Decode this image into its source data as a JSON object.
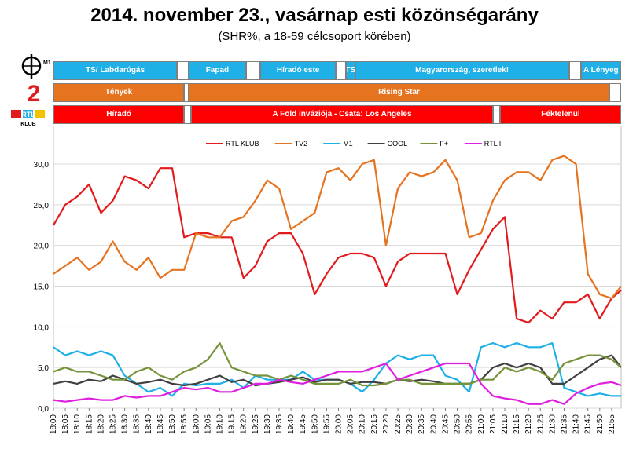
{
  "title": "2014. november 23., vasárnap esti közönségarány",
  "subtitle": "(SHR%, a 18-59 célcsoport körében)",
  "channels": {
    "m1_logo_text": "M1",
    "tv2_logo_text": "2",
    "rtl_logo_text": "RTL",
    "rtl_logo_sub": "KLUB"
  },
  "schedule": {
    "m1": [
      {
        "label": "TS/ Labdarúgás",
        "start": "18:00",
        "end": "18:52"
      },
      {
        "label": "",
        "start": "18:52",
        "end": "18:57"
      },
      {
        "label": "Fapad",
        "start": "18:57",
        "end": "19:21"
      },
      {
        "label": "",
        "start": "19:21",
        "end": "19:27"
      },
      {
        "label": "Híradó este",
        "start": "19:27",
        "end": "19:59"
      },
      {
        "label": "",
        "start": "19:59",
        "end": "20:03"
      },
      {
        "label": "TS",
        "start": "20:03",
        "end": "20:07"
      },
      {
        "label": "Magyarország, szeretlek!",
        "start": "20:07",
        "end": "21:37"
      },
      {
        "label": "",
        "start": "21:37",
        "end": "21:42"
      },
      {
        "label": "A Lényeg",
        "start": "21:42",
        "end": "21:59"
      }
    ],
    "tv2": [
      {
        "label": "Tények",
        "start": "18:00",
        "end": "18:55"
      },
      {
        "label": "",
        "start": "18:55",
        "end": "18:57"
      },
      {
        "label": "Rising Star",
        "start": "18:57",
        "end": "21:54"
      },
      {
        "label": "",
        "start": "21:54",
        "end": "21:59"
      }
    ],
    "rtl": [
      {
        "label": "Híradó",
        "start": "18:00",
        "end": "18:55"
      },
      {
        "label": "",
        "start": "18:55",
        "end": "18:58"
      },
      {
        "label": "A Föld inváziója - Csata: Los Angeles",
        "start": "18:58",
        "end": "21:05"
      },
      {
        "label": "",
        "start": "21:05",
        "end": "21:08"
      },
      {
        "label": "Féktelenül",
        "start": "21:08",
        "end": "21:59"
      }
    ]
  },
  "chart_data": {
    "type": "line",
    "xlabel": "",
    "ylabel": "",
    "ylim": [
      0,
      35
    ],
    "xlim": [
      "18:00",
      "21:59"
    ],
    "yticks": [
      "0,0",
      "5,0",
      "10,0",
      "15,0",
      "20,0",
      "25,0",
      "30,0"
    ],
    "ytick_values": [
      0,
      5,
      10,
      15,
      20,
      25,
      30
    ],
    "xticks": [
      "18:00",
      "18:05",
      "18:10",
      "18:15",
      "18:20",
      "18:25",
      "18:30",
      "18:35",
      "18:40",
      "18:45",
      "18:50",
      "18:55",
      "19:00",
      "19:05",
      "19:10",
      "19:15",
      "19:20",
      "19:25",
      "19:30",
      "19:35",
      "19:40",
      "19:45",
      "19:50",
      "19:55",
      "20:00",
      "20:05",
      "20:10",
      "20:15",
      "20:20",
      "20:25",
      "20:30",
      "20:35",
      "20:40",
      "20:45",
      "20:50",
      "20:55",
      "21:00",
      "21:05",
      "21:10",
      "21:15",
      "21:20",
      "21:25",
      "21:30",
      "21:35",
      "21:40",
      "21:45",
      "21:50",
      "21:55"
    ],
    "grid": "horizontal",
    "legend_position": "top",
    "x": [
      "18:00",
      "18:05",
      "18:10",
      "18:15",
      "18:20",
      "18:25",
      "18:30",
      "18:35",
      "18:40",
      "18:45",
      "18:50",
      "18:55",
      "19:00",
      "19:05",
      "19:10",
      "19:15",
      "19:20",
      "19:25",
      "19:30",
      "19:35",
      "19:40",
      "19:45",
      "19:50",
      "19:55",
      "20:00",
      "20:05",
      "20:10",
      "20:15",
      "20:20",
      "20:25",
      "20:30",
      "20:35",
      "20:40",
      "20:45",
      "20:50",
      "20:55",
      "21:00",
      "21:05",
      "21:10",
      "21:15",
      "21:20",
      "21:25",
      "21:30",
      "21:35",
      "21:40",
      "21:45",
      "21:50",
      "21:55",
      "21:59"
    ],
    "series": [
      {
        "name": "RTL KLUB",
        "color": "#e31a1c",
        "values": [
          22.5,
          25,
          26,
          27.5,
          24,
          25.5,
          28.5,
          28,
          27,
          29.5,
          29.5,
          21,
          21.5,
          21.5,
          21,
          21,
          16,
          17.5,
          20.5,
          21.5,
          21.5,
          19,
          14,
          16.5,
          18.5,
          19,
          19,
          18.5,
          15,
          18,
          19,
          19,
          19,
          19,
          14,
          17,
          19.5,
          22,
          23.5,
          11,
          10.5,
          12,
          11,
          13,
          13,
          14,
          11,
          13.5,
          14.5
        ]
      },
      {
        "name": "TV2",
        "color": "#e5731f",
        "values": [
          16.5,
          17.5,
          18.5,
          17,
          18,
          20.5,
          18,
          17,
          18.5,
          16,
          17,
          17,
          21.5,
          21,
          21,
          23,
          23.5,
          25.5,
          28,
          27,
          22,
          23,
          24,
          29,
          29.5,
          28,
          30,
          30.5,
          20,
          27,
          29,
          28.5,
          29,
          30.5,
          28,
          21,
          21.5,
          25.5,
          28,
          29,
          29,
          28,
          30.5,
          31,
          30,
          16.5,
          14,
          13.5,
          15
        ]
      },
      {
        "name": "M1",
        "color": "#1fb0e8",
        "values": [
          7.5,
          6.5,
          7,
          6.5,
          7,
          6.5,
          4,
          3,
          2,
          2.5,
          1.5,
          3,
          2.8,
          3,
          3,
          3.5,
          2.5,
          4,
          3.5,
          3.5,
          3.5,
          4.5,
          3.5,
          3.5,
          3.5,
          3,
          2,
          3.5,
          5.5,
          6.5,
          6,
          6.5,
          6.5,
          4,
          3.5,
          2,
          7.5,
          8,
          7.5,
          8,
          7.5,
          7.5,
          8,
          2.5,
          2,
          1.5,
          1.8,
          1.5,
          1.5
        ]
      },
      {
        "name": "COOL",
        "color": "#404040",
        "values": [
          3,
          3.3,
          3,
          3.5,
          3.3,
          4,
          3.5,
          3,
          3.2,
          3.5,
          3,
          2.8,
          3,
          3.5,
          4,
          3.2,
          3.5,
          2.8,
          3,
          3.2,
          3.5,
          3.8,
          3.2,
          3.5,
          3.5,
          3,
          3.2,
          3.2,
          3,
          3.5,
          3.3,
          3.5,
          3.3,
          3,
          3,
          3,
          3.5,
          5,
          5.5,
          5,
          5.5,
          5,
          3,
          3,
          4,
          5,
          6,
          6.5,
          5
        ]
      },
      {
        "name": "F+",
        "color": "#76933c",
        "values": [
          4.5,
          5,
          4.5,
          4.5,
          4,
          3.5,
          3.5,
          4.5,
          5,
          4,
          3.5,
          4.5,
          5,
          6,
          8,
          5,
          4.5,
          4,
          4,
          3.5,
          4,
          3.5,
          3,
          3,
          3,
          3.5,
          2.8,
          2.8,
          3,
          3.5,
          3.5,
          3,
          3,
          3,
          3,
          3,
          3.5,
          3.5,
          5,
          4.5,
          5,
          4.5,
          3.5,
          5.5,
          6,
          6.5,
          6.5,
          6,
          5
        ]
      },
      {
        "name": "RTL II",
        "color": "#e01ee0",
        "values": [
          1,
          0.8,
          1,
          1.2,
          1,
          1,
          1.5,
          1.3,
          1.5,
          1.5,
          2,
          2.5,
          2.3,
          2.5,
          2,
          2,
          2.5,
          3,
          3,
          3.5,
          3.2,
          3,
          3.5,
          4,
          4.5,
          4.5,
          4.5,
          5,
          5.5,
          3.5,
          4,
          4.5,
          5,
          5.5,
          5.5,
          5.5,
          3,
          1.5,
          1.2,
          1,
          0.5,
          0.5,
          1,
          0.5,
          1.8,
          2.5,
          3,
          3.2,
          2.8
        ]
      }
    ]
  }
}
